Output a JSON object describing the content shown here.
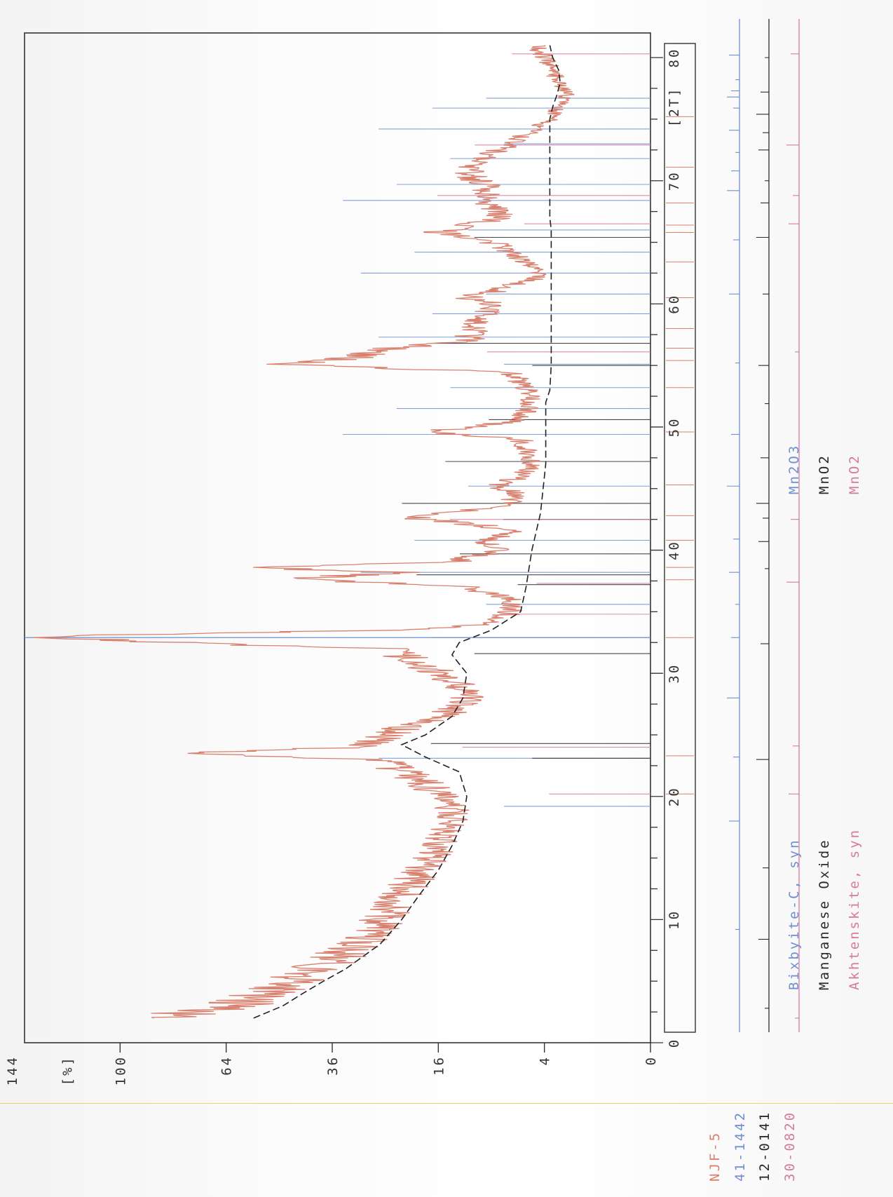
{
  "sample_label": "NJF-5",
  "colors": {
    "sample": "#d9816f",
    "bixbyite": "#6f8fd0",
    "manganese_oxide": "#2a2a2a",
    "akhtenskite": "#d67aa0",
    "frame": "#333333",
    "background_line": "#222222",
    "page_marker": "#f2d25a"
  },
  "phases": [
    {
      "ref": "41-1442",
      "name": "Bixbyite-C, syn",
      "formula": "Mn2O3"
    },
    {
      "ref": "12-0141",
      "name": "Manganese Oxide",
      "formula": "MnO2"
    },
    {
      "ref": "30-0820",
      "name": "Akhtenskite, syn",
      "formula": "MnO2"
    }
  ],
  "chart_data": {
    "type": "line",
    "orientation": "rotated-90",
    "x_axis": {
      "label": "[2T]",
      "range": [
        0,
        82
      ],
      "ticks": [
        0,
        10,
        20,
        30,
        40,
        50,
        60,
        70,
        80
      ]
    },
    "y_axis": {
      "label": "[%]",
      "scale": "sqrt",
      "range": [
        0,
        144
      ],
      "ticks": [
        0,
        4,
        16,
        36,
        64,
        100
      ],
      "top_tick_label": "144"
    },
    "series": [
      {
        "name": "NJF-5",
        "kind": "diffractogram",
        "x": [
          2,
          3,
          4,
          5,
          6,
          7,
          8,
          9,
          10,
          12,
          14,
          16,
          18,
          19,
          20,
          21,
          22,
          23,
          23.5,
          24,
          25,
          26,
          27,
          28,
          29,
          30,
          31,
          32,
          32.9,
          33.5,
          34,
          35,
          36,
          37,
          37.7,
          38.2,
          38.6,
          39,
          40,
          40.7,
          41.5,
          42,
          42.7,
          43.5,
          44.5,
          45.2,
          46,
          47,
          48,
          49,
          49.6,
          50.5,
          51.5,
          52.5,
          53.5,
          54.5,
          55.1,
          55.7,
          56.4,
          57,
          58,
          59,
          60,
          60.5,
          61,
          62,
          62.8,
          63.5,
          64.2,
          65,
          65.8,
          66.5,
          67,
          67.5,
          68.5,
          69.5,
          70.5,
          71.5,
          72.5,
          73,
          74,
          75,
          76,
          77,
          78,
          79,
          80,
          80.7,
          81
        ],
        "y": [
          88,
          62,
          52,
          46,
          40,
          35,
          31,
          28,
          26,
          22,
          19,
          16,
          14,
          14,
          16,
          18,
          22,
          26,
          76,
          30,
          26,
          18,
          14,
          12,
          13,
          16,
          20,
          24,
          135,
          22,
          9,
          7,
          7,
          12,
          42,
          22,
          56,
          14,
          8,
          10,
          6.5,
          10,
          21,
          8,
          6,
          8.5,
          6,
          5,
          5.5,
          6,
          17,
          6,
          5.5,
          5,
          6,
          7,
          46,
          30,
          24,
          12,
          11,
          10,
          9,
          12,
          9,
          5,
          4,
          6,
          7,
          9,
          16,
          11,
          8,
          8.5,
          10,
          9.5,
          12,
          11,
          8,
          7,
          5,
          3.5,
          3,
          2.5,
          3,
          3.5,
          4,
          4.5,
          4
        ]
      },
      {
        "name": "background",
        "kind": "fitted-background",
        "x": [
          2,
          3,
          4,
          5,
          6,
          8,
          10,
          12,
          14,
          16,
          18,
          20,
          22,
          23.2,
          24.2,
          25,
          26.5,
          28,
          30,
          31.5,
          32.5,
          33.5,
          35,
          37,
          40,
          43,
          46,
          47,
          50,
          52,
          53,
          55,
          58,
          60,
          63,
          66,
          67,
          70,
          73,
          75,
          76,
          77,
          78,
          79,
          80,
          81
        ],
        "y": [
          56,
          48,
          43,
          38,
          33,
          26,
          22,
          19,
          16,
          14,
          12.5,
          12,
          13,
          18,
          22,
          18,
          14,
          12.5,
          12,
          14,
          13,
          9,
          6,
          5.5,
          5,
          4.3,
          4,
          3.9,
          3.9,
          3.9,
          3.6,
          3.5,
          3.5,
          3.5,
          3.5,
          3.5,
          3.6,
          3.6,
          3.6,
          3.6,
          3.4,
          3.1,
          2.9,
          3,
          3.4,
          3.6
        ]
      }
    ],
    "reference_peaks": {
      "41-1442": [
        19.2,
        23.1,
        32.9,
        35.6,
        38.2,
        40.8,
        45.2,
        49.4,
        51.5,
        53.2,
        55.1,
        57.3,
        59.2,
        60.8,
        62.5,
        64.2,
        66.0,
        68.4,
        69.7,
        71.8,
        73.0,
        74.2,
        75.9,
        76.7
      ],
      "12-0141": [
        23.1,
        24.3,
        31.6,
        37.2,
        38.0,
        39.7,
        42.5,
        43.8,
        47.2,
        50.6,
        55.0,
        56.8,
        65.4
      ],
      "30-0820": [
        20.2,
        24.0,
        34.8,
        37.3,
        42.5,
        56.1,
        66.5,
        68.8,
        72.9,
        80.3
      ]
    },
    "stick_markers": {
      "41-1442": {
        "x": [
          9.2,
          18.0,
          23.2,
          28.0,
          32.9,
          35.6,
          38.2,
          40.9,
          45.2,
          49.4,
          55.2,
          60.8,
          65.2,
          69.2,
          70.8,
          72.3,
          74.1,
          75.9,
          76.8,
          77.3,
          78.2,
          80.2
        ]
      },
      "12-0141": {
        "x": [
          2.8,
          8.4,
          14.2,
          23.0,
          32.4,
          38.5,
          40.7,
          42.6,
          43.8,
          47.5,
          51.9,
          55.0,
          60.8,
          65.4,
          68.2,
          70.0,
          72.5,
          73.9,
          75.4,
          77.2,
          80.0
        ]
      },
      "30-0820": {
        "x": [
          2.0,
          20.2,
          24.1,
          37.4,
          42.5,
          56.1,
          66.5,
          68.8,
          72.9,
          80.3
        ]
      },
      "NJF-5": {
        "x": [
          20.2,
          23.3,
          32.9,
          37.6,
          38.6,
          40.8,
          42.8,
          45.3,
          49.6,
          53.2,
          55.4,
          56.4,
          58.0,
          60.5,
          63.4,
          65.8,
          66.4,
          68.2,
          71.1,
          75.2
        ]
      }
    }
  }
}
